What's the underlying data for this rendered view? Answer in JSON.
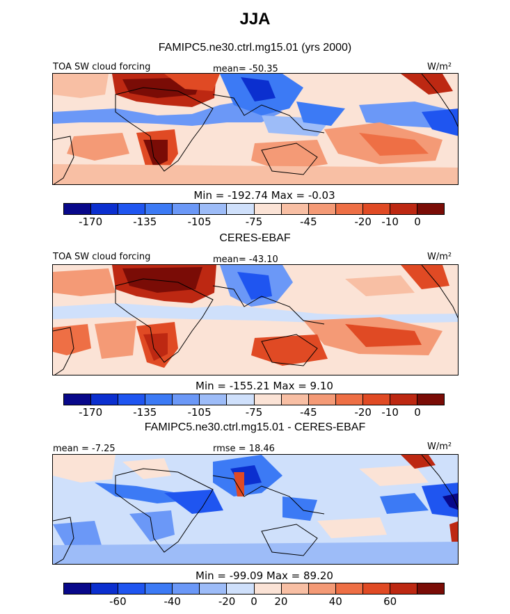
{
  "figure": {
    "title": "JJA"
  },
  "palette": {
    "abs": [
      "#08088a",
      "#0b2fcf",
      "#1f55f0",
      "#3c7af5",
      "#6b98f7",
      "#9dbcf8",
      "#cfe0fb",
      "#fbe3d6",
      "#f8bfa4",
      "#f49a76",
      "#ee6f45",
      "#e04a24",
      "#bd2812",
      "#7a0c06"
    ],
    "diff": [
      "#08088a",
      "#0b2fcf",
      "#1f55f0",
      "#3c7af5",
      "#6b98f7",
      "#9dbcf8",
      "#cfe0fb",
      "#fbe3d6",
      "#f8bfa4",
      "#f49a76",
      "#ee6f45",
      "#e04a24",
      "#bd2812",
      "#7a0c06"
    ]
  },
  "chart_data": [
    {
      "type": "heatmap",
      "title": "FAMIPC5.ne30.ctrl.mg15.01 (yrs 2000)",
      "field_label": "TOA SW cloud forcing",
      "mean_text": "mean= -50.35",
      "units_label": "W/m²",
      "min_max_text": "Min = -192.74  Max =  -0.03",
      "min": -192.74,
      "max": -0.03,
      "colorbar": {
        "ticks": [
          "-170",
          "-135",
          "-105",
          "-75",
          "-45",
          "-20",
          "-10",
          "0"
        ]
      }
    },
    {
      "type": "heatmap",
      "title": "CERES-EBAF",
      "field_label": "TOA SW cloud forcing",
      "mean_text": "mean= -43.10",
      "units_label": "W/m²",
      "min_max_text": "Min = -155.21  Max =   9.10",
      "min": -155.21,
      "max": 9.1,
      "colorbar": {
        "ticks": [
          "-170",
          "-135",
          "-105",
          "-75",
          "-45",
          "-20",
          "-10",
          "0"
        ]
      }
    },
    {
      "type": "heatmap",
      "title": "FAMIPC5.ne30.ctrl.mg15.01 - CERES-EBAF",
      "mean_text": "mean =  -7.25",
      "rmse_text": "rmse =  18.46",
      "units_label": "W/m²",
      "min_max_text": "Min = -99.09  Max =  89.20",
      "min": -99.09,
      "max": 89.2,
      "colorbar": {
        "ticks": [
          "-60",
          "-40",
          "-20",
          "0",
          "20",
          "40",
          "60"
        ]
      }
    }
  ]
}
